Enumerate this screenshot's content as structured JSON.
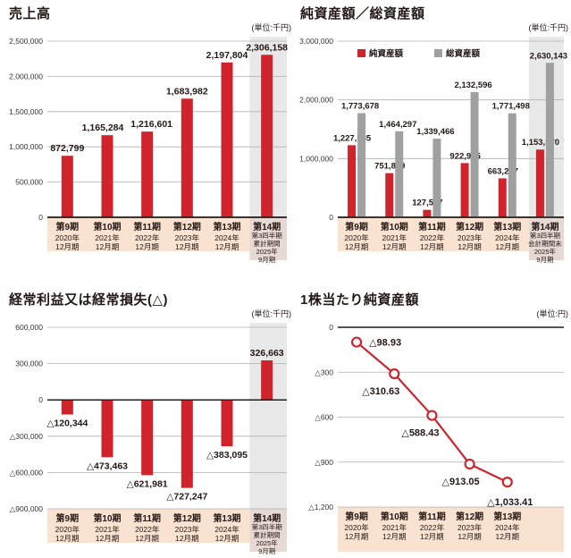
{
  "colors": {
    "red": "#d0232b",
    "gray_bar": "#9fa0a0",
    "highlight": "#e8e8e9",
    "band": "#f9e2d0",
    "band_highlight": "#e6d8d3",
    "grid": "#b0b0b0",
    "axis": "#1a1a1a",
    "text": "#231815",
    "tick_text": "#333333"
  },
  "charts": [
    {
      "title": "売上高",
      "unit": "(単位:千円)",
      "chart_data": {
        "type": "bar",
        "categories": [
          {
            "period": "第9期",
            "sub": [
              "2020年",
              "12月期"
            ]
          },
          {
            "period": "第10期",
            "sub": [
              "2021年",
              "12月期"
            ]
          },
          {
            "period": "第11期",
            "sub": [
              "2022年",
              "12月期"
            ]
          },
          {
            "period": "第12期",
            "sub": [
              "2023年",
              "12月期"
            ]
          },
          {
            "period": "第13期",
            "sub": [
              "2024年",
              "12月期"
            ]
          },
          {
            "period": "第14期",
            "sub": [
              "第3四半期",
              "累計期間",
              "2025年",
              "9月期"
            ]
          }
        ],
        "values": [
          872799,
          1165284,
          1216601,
          1683982,
          2197804,
          2306158
        ],
        "labels": [
          "872,799",
          "1,165,284",
          "1,216,601",
          "1,683,982",
          "2,197,804",
          "2,306,158"
        ],
        "label_dx": [
          0,
          -5,
          5,
          0,
          0,
          0
        ],
        "ylim": [
          0,
          2500000
        ],
        "yticks": [
          {
            "v": 2500000,
            "label": "2,500,000"
          },
          {
            "v": 2000000,
            "label": "2,000,000"
          },
          {
            "v": 1500000,
            "label": "1,500,000"
          },
          {
            "v": 1000000,
            "label": "1,000,000"
          },
          {
            "v": 500000,
            "label": "500,000"
          },
          {
            "v": 0,
            "label": "0"
          }
        ],
        "slots": 6,
        "highlight_last": true,
        "band_h": 38
      }
    },
    {
      "title": "純資産額／総資産額",
      "unit": "(単位:千円)",
      "chart_data": {
        "type": "grouped-bar",
        "categories": [
          {
            "period": "第9期",
            "sub": [
              "2020年",
              "12月期"
            ]
          },
          {
            "period": "第10期",
            "sub": [
              "2021年",
              "12月期"
            ]
          },
          {
            "period": "第11期",
            "sub": [
              "2022年",
              "12月期"
            ]
          },
          {
            "period": "第12期",
            "sub": [
              "2023年",
              "12月期"
            ]
          },
          {
            "period": "第13期",
            "sub": [
              "2024年",
              "12月期"
            ]
          },
          {
            "period": "第14期",
            "sub": [
              "第3四半期",
              "会計期間末",
              "2025年",
              "9月期"
            ]
          }
        ],
        "series": [
          {
            "name": "純資産額",
            "color_key": "red",
            "values": [
              1227585,
              751829,
              127557,
              922975,
              663207,
              1153570
            ],
            "labels": [
              "1,227,585",
              "751,829",
              "127,557",
              "922,975",
              "663,207",
              "1,153,570"
            ]
          },
          {
            "name": "総資産額",
            "color_key": "gray_bar",
            "values": [
              1773678,
              1464297,
              1339466,
              2132596,
              1771498,
              2630143
            ],
            "labels": [
              "1,773,678",
              "1,464,297",
              "1,339,466",
              "2,132,596",
              "1,771,498",
              "2,630,143"
            ]
          }
        ],
        "legend": [
          {
            "label": "純資産額",
            "color_key": "red"
          },
          {
            "label": "総資産額",
            "color_key": "gray_bar"
          }
        ],
        "legend_position": "top-left",
        "ylim": [
          0,
          3000000
        ],
        "yticks": [
          {
            "v": 3000000,
            "label": "3,000,000"
          },
          {
            "v": 2000000,
            "label": "2,000,000"
          },
          {
            "v": 1000000,
            "label": "1,000,000"
          },
          {
            "v": 0,
            "label": "0"
          }
        ],
        "slots": 6,
        "highlight_last": true,
        "band_h": 38
      }
    },
    {
      "title": "経常利益又は経常損失(△)",
      "unit": "(単位:千円)",
      "chart_data": {
        "type": "bar",
        "categories": [
          {
            "period": "第9期",
            "sub": [
              "2020年",
              "12月期"
            ]
          },
          {
            "period": "第10期",
            "sub": [
              "2021年",
              "12月期"
            ]
          },
          {
            "period": "第11期",
            "sub": [
              "2022年",
              "12月期"
            ]
          },
          {
            "period": "第12期",
            "sub": [
              "2023年",
              "12月期"
            ]
          },
          {
            "period": "第13期",
            "sub": [
              "2024年",
              "12月期"
            ]
          },
          {
            "period": "第14期",
            "sub": [
              "第3四半期",
              "累計期間",
              "2025年",
              "9月期"
            ]
          }
        ],
        "values": [
          -120344,
          -473463,
          -621981,
          -727247,
          -383095,
          326663
        ],
        "labels": [
          "△120,344",
          "△473,463",
          "△621,981",
          "△727,247",
          "△383,095",
          "326,663"
        ],
        "label_dx": [
          0,
          0,
          0,
          0,
          0,
          0
        ],
        "ylim": [
          -900000,
          600000
        ],
        "yticks": [
          {
            "v": 600000,
            "label": "600,000"
          },
          {
            "v": 300000,
            "label": "300,000"
          },
          {
            "v": 0,
            "label": "0"
          },
          {
            "v": -300000,
            "label": "△300,000"
          },
          {
            "v": -600000,
            "label": "△600,000"
          },
          {
            "v": -900000,
            "label": "△900,000"
          }
        ],
        "slots": 6,
        "highlight_last": true,
        "band_h": 38
      }
    },
    {
      "title": "1株当たり純資産額",
      "unit": "(単位:円)",
      "chart_data": {
        "type": "line",
        "categories": [
          {
            "period": "第9期",
            "sub": [
              "2020年",
              "12月期"
            ]
          },
          {
            "period": "第10期",
            "sub": [
              "2021年",
              "12月期"
            ]
          },
          {
            "period": "第11期",
            "sub": [
              "2022年",
              "12月期"
            ]
          },
          {
            "period": "第12期",
            "sub": [
              "2023年",
              "12月期"
            ]
          },
          {
            "period": "第13期",
            "sub": [
              "2024年",
              "12月期"
            ]
          }
        ],
        "values": [
          -98.93,
          -310.63,
          -588.43,
          -913.05,
          -1033.41
        ],
        "labels": [
          "△98.93",
          "△310.63",
          "△588.43",
          "△913.05",
          "△1,033.41"
        ],
        "label_offsets": [
          [
            14,
            4,
            "start"
          ],
          [
            -15,
            23,
            "middle"
          ],
          [
            -13,
            23,
            "middle"
          ],
          [
            -10,
            23,
            "middle"
          ],
          [
            3,
            26,
            "middle"
          ]
        ],
        "ylim": [
          -1200,
          0
        ],
        "yticks": [
          {
            "v": 0,
            "label": "0"
          },
          {
            "v": -300,
            "label": "△300"
          },
          {
            "v": -600,
            "label": "△600"
          },
          {
            "v": -900,
            "label": "△900"
          },
          {
            "v": -1200,
            "label": "△1,200"
          }
        ],
        "slots": 6,
        "highlight_last": false,
        "band_h": 50
      }
    }
  ]
}
